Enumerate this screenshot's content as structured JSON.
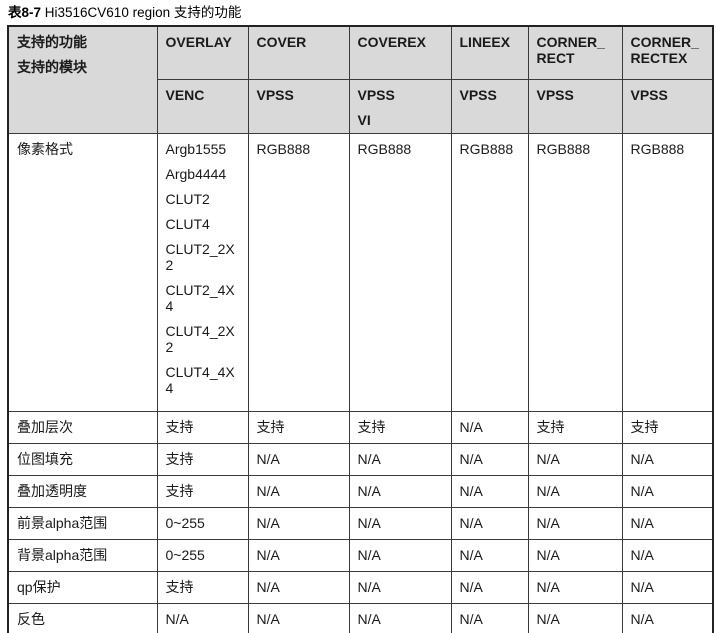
{
  "title": {
    "prefix": "表8-7",
    "rest": " Hi3516CV610 region 支持的功能"
  },
  "table": {
    "corner": {
      "line1": "支持的功能",
      "line2": "支持的模块"
    },
    "columns": [
      {
        "feature": "OVERLAY",
        "module": [
          "VENC"
        ]
      },
      {
        "feature": "COVER",
        "module": [
          "VPSS"
        ]
      },
      {
        "feature": "COVEREX",
        "module": [
          "VPSS",
          "VI"
        ]
      },
      {
        "feature": "LINEEX",
        "module": [
          "VPSS"
        ]
      },
      {
        "feature": "CORNER_RECT",
        "module": [
          "VPSS"
        ]
      },
      {
        "feature": "CORNER_RECTEX",
        "module": [
          "VPSS"
        ]
      }
    ],
    "rows": [
      {
        "label": "像素格式",
        "cells": [
          [
            "Argb1555",
            "Argb4444",
            "CLUT2",
            "CLUT4",
            "CLUT2_2X2",
            "CLUT2_4X4",
            "CLUT4_2X2",
            "CLUT4_4X4"
          ],
          [
            "RGB888"
          ],
          [
            "RGB888"
          ],
          [
            "RGB888"
          ],
          [
            "RGB888"
          ],
          [
            "RGB888"
          ]
        ]
      },
      {
        "label": "叠加层次",
        "cells": [
          [
            "支持"
          ],
          [
            "支持"
          ],
          [
            "支持"
          ],
          [
            "N/A"
          ],
          [
            "支持"
          ],
          [
            "支持"
          ]
        ]
      },
      {
        "label": "位图填充",
        "cells": [
          [
            "支持"
          ],
          [
            "N/A"
          ],
          [
            "N/A"
          ],
          [
            "N/A"
          ],
          [
            "N/A"
          ],
          [
            "N/A"
          ]
        ]
      },
      {
        "label": "叠加透明度",
        "cells": [
          [
            "支持"
          ],
          [
            "N/A"
          ],
          [
            "N/A"
          ],
          [
            "N/A"
          ],
          [
            "N/A"
          ],
          [
            "N/A"
          ]
        ]
      },
      {
        "label": "前景alpha范围",
        "cells": [
          [
            "0~255"
          ],
          [
            "N/A"
          ],
          [
            "N/A"
          ],
          [
            "N/A"
          ],
          [
            "N/A"
          ],
          [
            "N/A"
          ]
        ]
      },
      {
        "label": "背景alpha范围",
        "cells": [
          [
            "0~255"
          ],
          [
            "N/A"
          ],
          [
            "N/A"
          ],
          [
            "N/A"
          ],
          [
            "N/A"
          ],
          [
            "N/A"
          ]
        ]
      },
      {
        "label": "qp保护",
        "cells": [
          [
            "支持"
          ],
          [
            "N/A"
          ],
          [
            "N/A"
          ],
          [
            "N/A"
          ],
          [
            "N/A"
          ],
          [
            "N/A"
          ]
        ]
      },
      {
        "label": "反色",
        "cells": [
          [
            "N/A"
          ],
          [
            "N/A"
          ],
          [
            "N/A"
          ],
          [
            "N/A"
          ],
          [
            "N/A"
          ],
          [
            "N/A"
          ]
        ]
      }
    ]
  },
  "colors": {
    "header_bg": "#d9d9d9",
    "border_inner": "#3a3a3a",
    "border_outer": "#222222",
    "text": "#1a1a1a"
  }
}
